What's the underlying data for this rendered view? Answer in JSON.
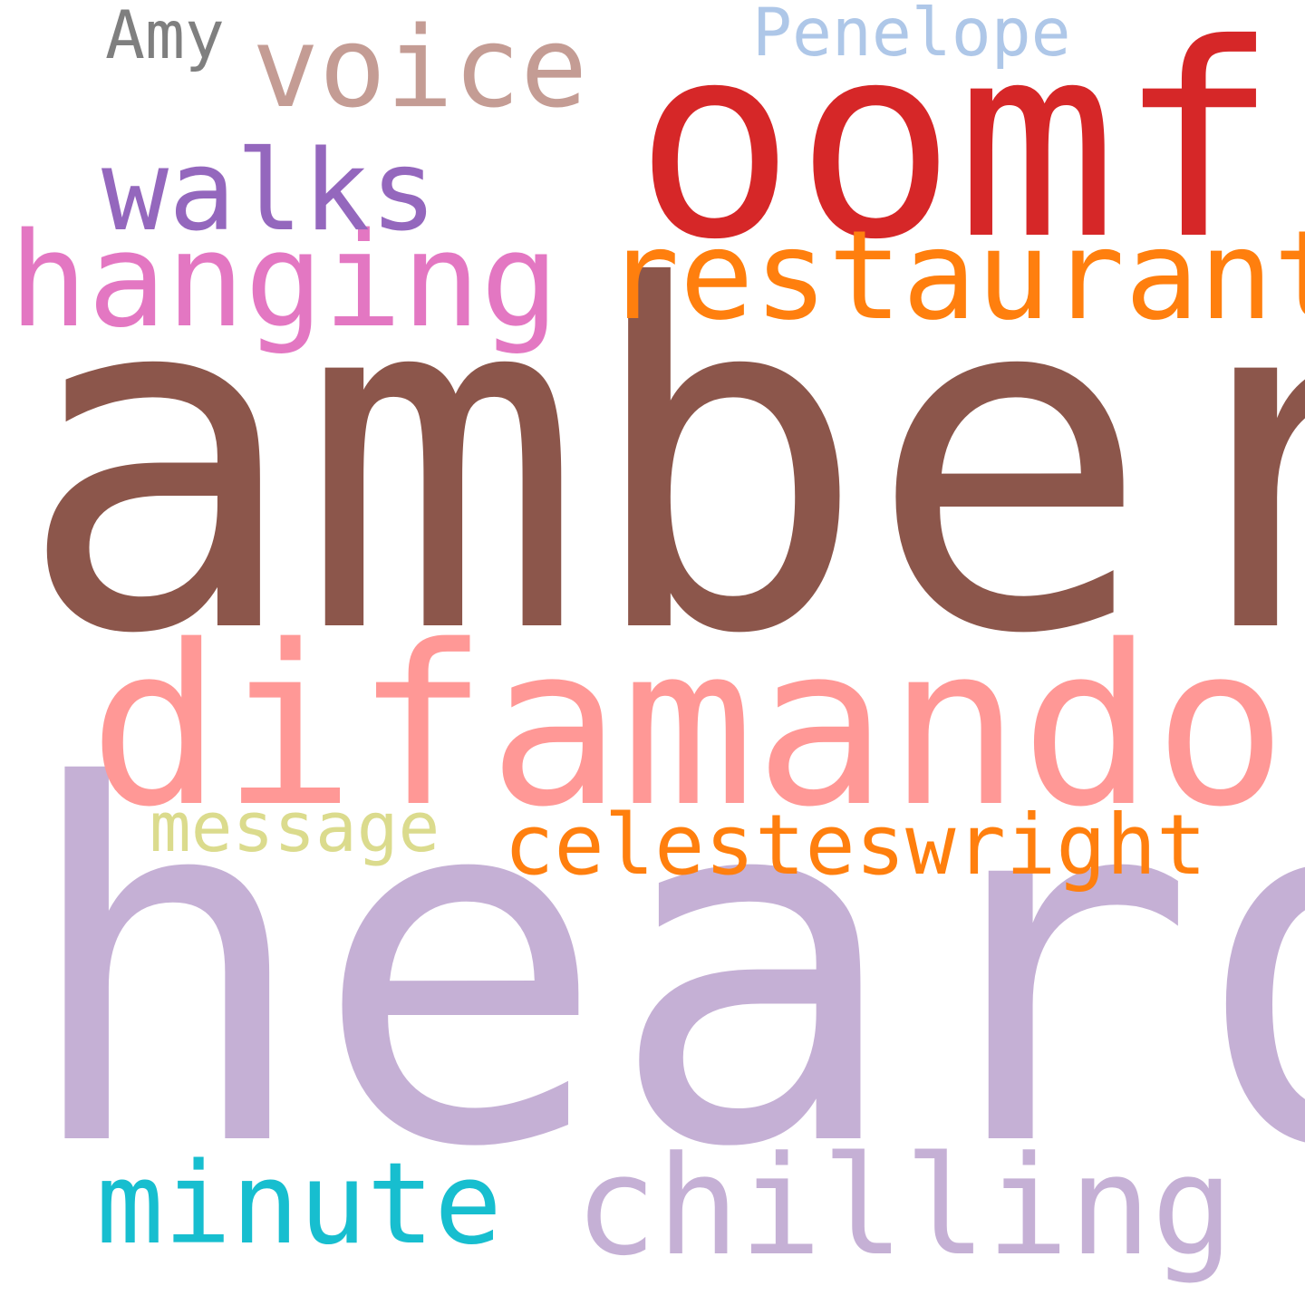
{
  "words": {
    "heard": {
      "text": "heard",
      "color": "#c5b0d5"
    },
    "amber": {
      "text": "amber",
      "color": "#8c564b"
    },
    "difamando": {
      "text": "difamando",
      "color": "#ff9896"
    },
    "oomf": {
      "text": "oomf",
      "color": "#d62728"
    },
    "restaurant": {
      "text": "restaurant",
      "color": "#ff7f0e"
    },
    "hanging": {
      "text": "hanging",
      "color": "#e377c2"
    },
    "walks": {
      "text": "walks",
      "color": "#9467bd"
    },
    "voice": {
      "text": "voice",
      "color": "#c49c94"
    },
    "amy": {
      "text": "Amy",
      "color": "#7f7f7f"
    },
    "penelope": {
      "text": "Penelope",
      "color": "#aec7e8"
    },
    "message": {
      "text": "message",
      "color": "#dbdb8d"
    },
    "celesteswright": {
      "text": "celesteswright",
      "color": "#ff7f0e"
    },
    "minute": {
      "text": "minute",
      "color": "#17becf"
    },
    "chilling": {
      "text": "chilling",
      "color": "#c5b0d5"
    }
  }
}
